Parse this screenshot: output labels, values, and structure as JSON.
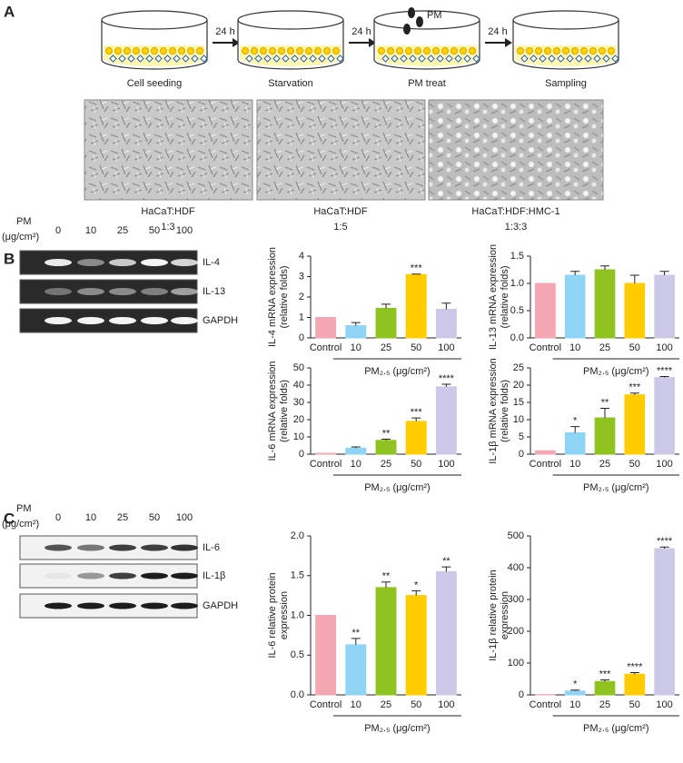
{
  "panels": {
    "a": "A",
    "b": "B",
    "c": "C"
  },
  "workflow": {
    "steps": [
      "Cell seeding",
      "Starvation",
      "PM treat",
      "Sampling"
    ],
    "intervals": [
      "24 h",
      "24 h",
      "24 h"
    ],
    "treatment": "PM"
  },
  "micrographs": [
    {
      "line1": "HaCaT:HDF",
      "line2": "1:3"
    },
    {
      "line1": "HaCaT:HDF",
      "line2": "1:5"
    },
    {
      "line1": "HaCaT:HDF:HMC-1",
      "line2": "1:3:3"
    }
  ],
  "gel_b": {
    "dose_label": "PM",
    "unit": "(μg/cm²)",
    "lanes": [
      "0",
      "10",
      "25",
      "50",
      "100"
    ],
    "rows": [
      "IL-4",
      "IL-13",
      "GAPDH"
    ]
  },
  "blot_c": {
    "dose_label": "PM",
    "unit": "(μg/cm²)",
    "lanes": [
      "0",
      "10",
      "25",
      "50",
      "100"
    ],
    "rows": [
      "IL-6",
      "IL-1β",
      "GAPDH"
    ]
  },
  "chart_data": [
    {
      "type": "bar",
      "ylabel": [
        "IL-4 mRNA expression",
        "(relative folds)"
      ],
      "categories": [
        "Control",
        "10",
        "25",
        "50",
        "100"
      ],
      "xlabel": "PM₂.₅ (μg/cm²)",
      "values": [
        1,
        0.6,
        1.45,
        3.1,
        1.4
      ],
      "errors": [
        null,
        0.15,
        0.2,
        0.02,
        0.3
      ],
      "significance": [
        null,
        null,
        null,
        "***",
        null
      ],
      "colors": [
        "#f4a7b0",
        "#8ed4f5",
        "#8fc31f",
        "#ffcc00",
        "#cbc8e8"
      ],
      "ylim": [
        0,
        4
      ],
      "yticks": [
        0,
        1,
        2,
        3,
        4
      ]
    },
    {
      "type": "bar",
      "ylabel": [
        "IL-13 mRNA expression",
        "(relative folds)"
      ],
      "categories": [
        "Control",
        "10",
        "25",
        "50",
        "100"
      ],
      "xlabel": "PM₂.₅ (μg/cm²)",
      "values": [
        1.0,
        1.15,
        1.25,
        1.0,
        1.15
      ],
      "errors": [
        null,
        0.07,
        0.07,
        0.15,
        0.07
      ],
      "significance": [
        null,
        null,
        null,
        null,
        null
      ],
      "colors": [
        "#f4a7b0",
        "#8ed4f5",
        "#8fc31f",
        "#ffcc00",
        "#cbc8e8"
      ],
      "ylim": [
        0,
        1.5
      ],
      "yticks": [
        {
          "value": 0,
          "label": "0.0"
        },
        {
          "value": 0.5,
          "label": "0.5"
        },
        {
          "value": 1,
          "label": "1.0"
        },
        {
          "value": 1.5,
          "label": "1.5"
        }
      ]
    },
    {
      "type": "bar",
      "ylabel": [
        "IL-6 mRNA expression",
        "(relative folds)"
      ],
      "categories": [
        "Control",
        "10",
        "25",
        "50",
        "100"
      ],
      "xlabel": "PM₂.₅ (μg/cm²)",
      "values": [
        0.5,
        3.5,
        8,
        19,
        39
      ],
      "errors": [
        null,
        0.7,
        0.7,
        2,
        1.5
      ],
      "significance": [
        null,
        null,
        "**",
        "***",
        "****"
      ],
      "colors": [
        "#f4a7b0",
        "#8ed4f5",
        "#8fc31f",
        "#ffcc00",
        "#cbc8e8"
      ],
      "ylim": [
        0,
        50
      ],
      "yticks": [
        0,
        10,
        20,
        30,
        40,
        50
      ]
    },
    {
      "type": "bar",
      "ylabel": [
        "IL-1β mRNA expression",
        "(relative folds)"
      ],
      "categories": [
        "Control",
        "10",
        "25",
        "50",
        "100"
      ],
      "xlabel": "PM₂.₅ (μg/cm²)",
      "values": [
        1,
        6.2,
        10.5,
        17.2,
        22.2
      ],
      "errors": [
        null,
        1.8,
        2.8,
        0.5,
        0.3
      ],
      "significance": [
        null,
        "*",
        "**",
        "***",
        "****"
      ],
      "colors": [
        "#f4a7b0",
        "#8ed4f5",
        "#8fc31f",
        "#ffcc00",
        "#cbc8e8"
      ],
      "ylim": [
        0,
        25
      ],
      "yticks": [
        0,
        5,
        10,
        15,
        20,
        25
      ]
    },
    {
      "type": "bar",
      "ylabel": [
        "IL-6 relative protein",
        "expression"
      ],
      "categories": [
        "Control",
        "10",
        "25",
        "50",
        "100"
      ],
      "xlabel": "PM₂.₅ (μg/cm²)",
      "values": [
        1.0,
        0.63,
        1.35,
        1.25,
        1.55
      ],
      "errors": [
        null,
        0.08,
        0.07,
        0.06,
        0.06
      ],
      "significance": [
        null,
        "**",
        "**",
        "*",
        "**"
      ],
      "colors": [
        "#f4a7b0",
        "#8ed4f5",
        "#8fc31f",
        "#ffcc00",
        "#cbc8e8"
      ],
      "ylim": [
        0,
        2
      ],
      "yticks": [
        {
          "value": 0,
          "label": "0.0"
        },
        {
          "value": 0.5,
          "label": "0.5"
        },
        {
          "value": 1,
          "label": "1.0"
        },
        {
          "value": 1.5,
          "label": "1.5"
        },
        {
          "value": 2,
          "label": "2.0"
        }
      ]
    },
    {
      "type": "bar",
      "ylabel": [
        "IL-1β relative protein",
        "expression"
      ],
      "categories": [
        "Control",
        "10",
        "25",
        "50",
        "100"
      ],
      "xlabel": "PM₂.₅ (μg/cm²)",
      "values": [
        1,
        12,
        42,
        65,
        460
      ],
      "errors": [
        null,
        3,
        5,
        5,
        5
      ],
      "significance": [
        null,
        "*",
        "***",
        "****",
        "****"
      ],
      "colors": [
        "#f4a7b0",
        "#8ed4f5",
        "#8fc31f",
        "#ffcc00",
        "#cbc8e8"
      ],
      "ylim": [
        0,
        500
      ],
      "yticks": [
        0,
        100,
        200,
        300,
        400,
        500
      ]
    }
  ]
}
